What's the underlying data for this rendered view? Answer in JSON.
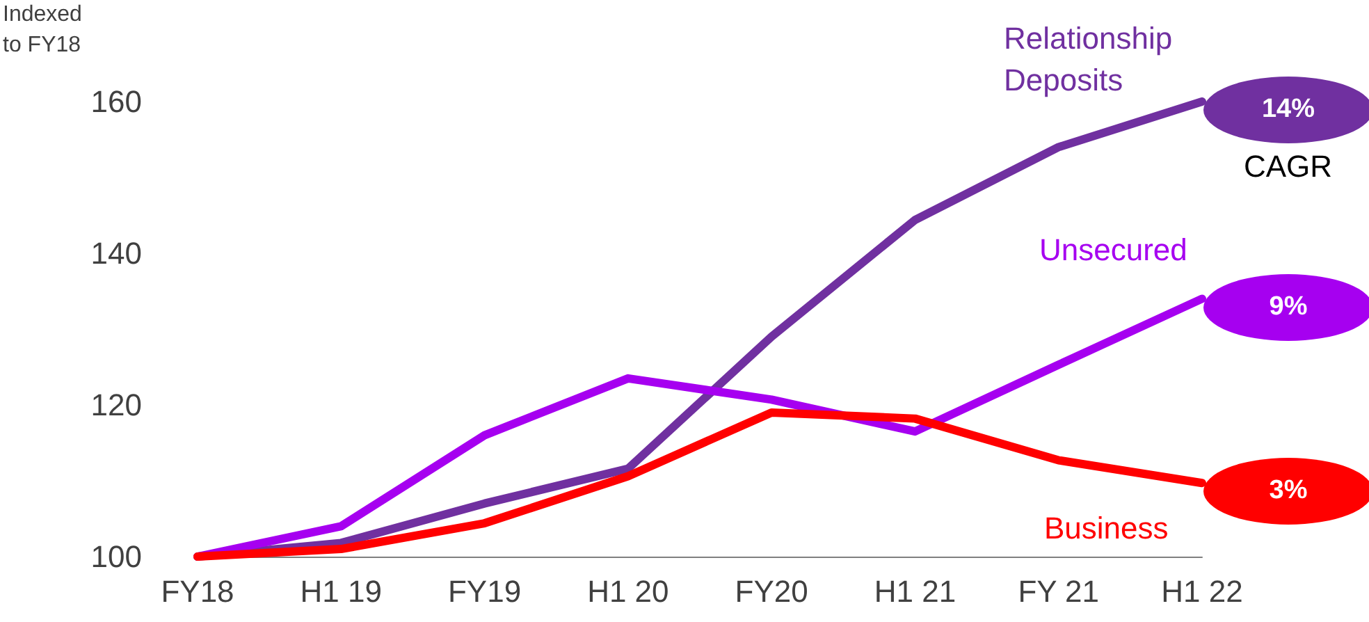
{
  "chart_data": {
    "type": "line",
    "ylabel": "Indexed\nto FY18",
    "categories": [
      "FY18",
      "H1 19",
      "FY19",
      "H1 20",
      "FY20",
      "H1 21",
      "FY 21",
      "H1 22"
    ],
    "series": [
      {
        "name": "Relationship\nDeposits",
        "color": "#7030a0",
        "values": [
          100,
          101.8,
          107,
          111.6,
          129,
          144.4,
          154,
          160
        ]
      },
      {
        "name": "Unsecured",
        "color": "#a600f0",
        "values": [
          100,
          104,
          116,
          123.5,
          120.7,
          116.5,
          125.3,
          134
        ]
      },
      {
        "name": "Business",
        "color": "#ff0000",
        "values": [
          100,
          101,
          104.4,
          110.6,
          119,
          118.2,
          112.7,
          109.7
        ]
      }
    ],
    "annotations": [
      {
        "text": "14%",
        "x": "H1 22",
        "y": 160
      },
      {
        "text": "9%",
        "x": "H1 22",
        "y": 134
      },
      {
        "text": "3%",
        "x": "H1 22",
        "y": 109.7
      },
      "CAGR"
    ],
    "ylim": [
      100,
      160
    ],
    "yticks": [
      100,
      120,
      140,
      160
    ],
    "grid": false,
    "legend": false,
    "marker": "none",
    "line_style": "solid"
  }
}
